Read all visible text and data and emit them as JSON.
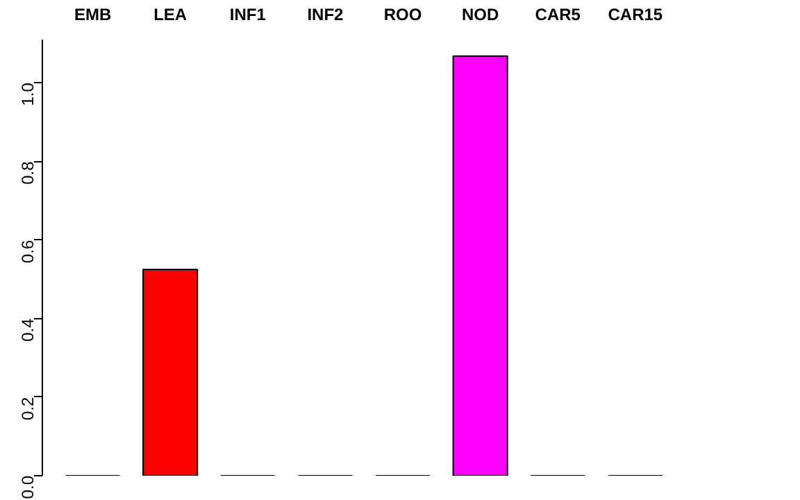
{
  "chart_data": {
    "type": "bar",
    "categories": [
      "EMB",
      "LEA",
      "INF1",
      "INF2",
      "ROO",
      "NOD",
      "CAR5",
      "CAR15"
    ],
    "values": [
      0,
      0.525,
      0,
      0,
      0,
      1.068,
      0,
      0
    ],
    "colors": [
      "#000000",
      "#ff0000",
      "#000000",
      "#000000",
      "#000000",
      "#ff00ff",
      "#000000",
      "#000000"
    ],
    "ylim": [
      0,
      1.11
    ],
    "yticks": [
      {
        "value": 0,
        "label": "0.0"
      },
      {
        "value": 0.2,
        "label": "0.2"
      },
      {
        "value": 0.4,
        "label": "0.4"
      },
      {
        "value": 0.6,
        "label": "0.6"
      },
      {
        "value": 0.8,
        "label": "0.8"
      },
      {
        "value": 1.0,
        "label": "1.0"
      }
    ],
    "grid": false
  }
}
